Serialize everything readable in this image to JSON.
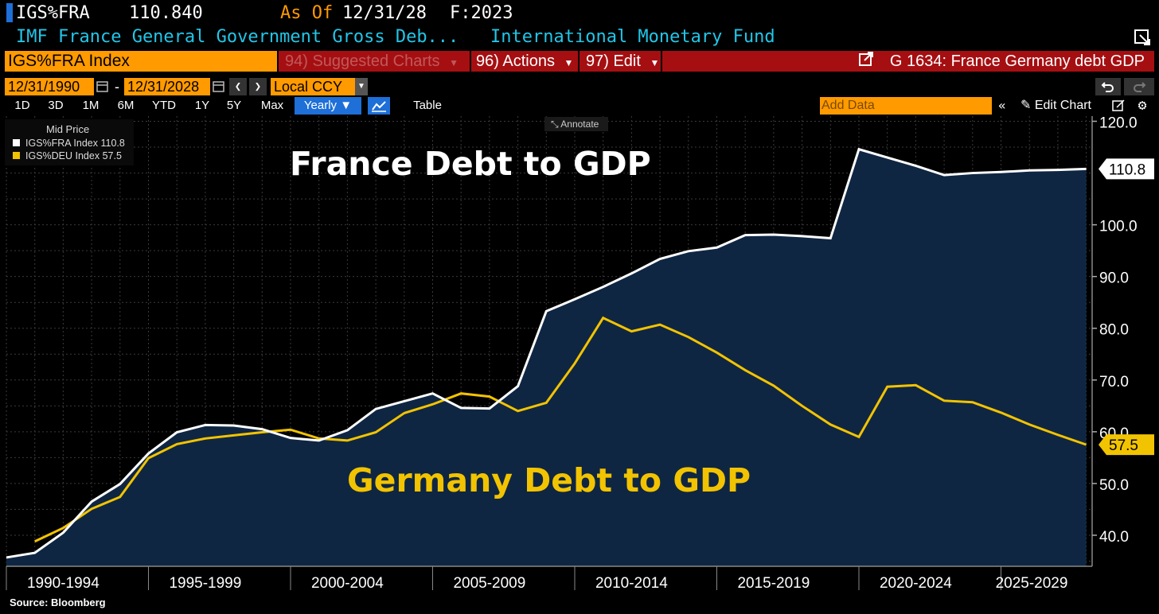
{
  "header": {
    "ticker": "IGS%FRA",
    "value": "110.840",
    "as_of_label": "As Of",
    "as_of_date": "12/31/28",
    "freq": "F:2023",
    "description": "IMF France General Government Gross Deb...",
    "source_name": "International Monetary Fund"
  },
  "toolbar": {
    "security": "IGS%FRA Index",
    "suggested": "94) Suggested Charts",
    "actions": "96) Actions",
    "edit": "97) Edit",
    "chart_title": "G 1634: France Germany debt GDP"
  },
  "dates": {
    "start": "12/31/1990",
    "dash": "-",
    "end": "12/31/2028",
    "currency": "Local CCY"
  },
  "periods": [
    "1D",
    "3D",
    "1M",
    "6M",
    "YTD",
    "1Y",
    "5Y",
    "Max"
  ],
  "freq_select": "Yearly ▼",
  "table_label": "Table",
  "add_data_placeholder": "Add Data",
  "edit_chart_label": "Edit Chart",
  "annotate_label": "Annotate",
  "legend": {
    "title": "Mid Price",
    "items": [
      {
        "label": "IGS%FRA Index  110.8",
        "color": "#ffffff"
      },
      {
        "label": "IGS%DEU Index  57.5",
        "color": "#f2c300"
      }
    ]
  },
  "source_text": "Source:  Bloomberg",
  "colors": {
    "france": "#ffffff",
    "germany": "#f2c300",
    "fill": "#0f2643",
    "orange": "#ff9a00",
    "red": "#a50f12",
    "blue": "#1e6fd8",
    "cyan": "#22c6e8"
  },
  "chart_data": {
    "type": "line",
    "title": "",
    "xlabel": "",
    "ylabel": "",
    "x": [
      1990,
      1991,
      1992,
      1993,
      1994,
      1995,
      1996,
      1997,
      1998,
      1999,
      2000,
      2001,
      2002,
      2003,
      2004,
      2005,
      2006,
      2007,
      2008,
      2009,
      2010,
      2011,
      2012,
      2013,
      2014,
      2015,
      2016,
      2017,
      2018,
      2019,
      2020,
      2021,
      2022,
      2023,
      2024,
      2025,
      2026,
      2027,
      2028
    ],
    "x_tick_labels": [
      "1990-1994",
      "1995-1999",
      "2000-2004",
      "2005-2009",
      "2010-2014",
      "2015-2019",
      "2020-2024",
      "2025-2029"
    ],
    "y_ticks": [
      40,
      50,
      60,
      70,
      80,
      90,
      100,
      120
    ],
    "y_tick_labels": [
      "40.0",
      "50.0",
      "60.0",
      "70.0",
      "80.0",
      "90.0",
      "100.0",
      "120.0"
    ],
    "ylim": [
      34,
      121
    ],
    "series": [
      {
        "name": "IGS%FRA Index",
        "last_label": "110.8",
        "overlay_label": "France Debt to GDP",
        "values": [
          35.7,
          36.6,
          40.5,
          46.5,
          49.9,
          55.8,
          59.9,
          61.3,
          61.2,
          60.5,
          58.8,
          58.3,
          60.3,
          64.4,
          65.9,
          67.4,
          64.6,
          64.5,
          68.8,
          83.3,
          85.6,
          88.0,
          90.6,
          93.4,
          94.9,
          95.6,
          98.0,
          98.1,
          97.8,
          97.4,
          114.6,
          113.0,
          111.4,
          109.6,
          110.0,
          110.2,
          110.5,
          110.6,
          110.8
        ]
      },
      {
        "name": "IGS%DEU Index",
        "last_label": "57.5",
        "overlay_label": "Germany Debt to GDP",
        "values": [
          null,
          38.8,
          41.4,
          45.1,
          47.4,
          54.9,
          57.6,
          58.7,
          59.3,
          59.9,
          60.4,
          58.7,
          58.3,
          59.9,
          63.6,
          65.3,
          67.4,
          66.8,
          64.0,
          65.6,
          73.2,
          82.0,
          79.4,
          80.7,
          78.3,
          75.3,
          71.9,
          68.9,
          65.0,
          61.4,
          59.0,
          68.7,
          69.0,
          66.0,
          65.7,
          63.7,
          61.4,
          59.4,
          57.5
        ]
      }
    ]
  }
}
